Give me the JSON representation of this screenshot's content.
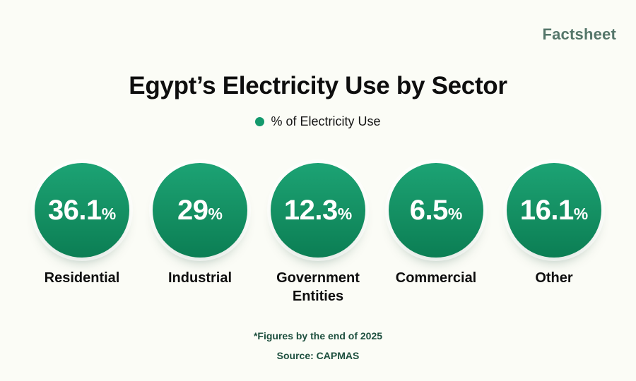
{
  "brand": "Factsheet",
  "title": "Egypt’s Electricity Use by Sector",
  "legend": {
    "label": "% of Electricity Use"
  },
  "colors": {
    "background": "#fbfcf6",
    "bubble_green_top": "#1ca374",
    "bubble_green_bottom": "#0b7e54",
    "legend_dot": "#13996c",
    "brand_text": "#55766a",
    "footer_text": "#1d4f3e",
    "value_text": "#ffffff",
    "label_text": "#0e0e0e"
  },
  "chart_data": {
    "type": "pie",
    "display": "proportional-circles",
    "title": "Egypt’s Electricity Use by Sector",
    "legend_entries": [
      "% of Electricity Use"
    ],
    "categories": [
      "Residential",
      "Industrial",
      "Government Entities",
      "Commercial",
      "Other"
    ],
    "values": [
      36.1,
      29,
      12.3,
      6.5,
      16.1
    ],
    "unit": "%",
    "note": "*Figures by the end of 2025",
    "source": "Source: CAPMAS"
  },
  "sectors": [
    {
      "value_display": "36.1",
      "unit": "%",
      "label": "Residential"
    },
    {
      "value_display": "29",
      "unit": "%",
      "label": "Industrial"
    },
    {
      "value_display": "12.3",
      "unit": "%",
      "label": "Government Entities"
    },
    {
      "value_display": "6.5",
      "unit": "%",
      "label": "Commercial"
    },
    {
      "value_display": "16.1",
      "unit": "%",
      "label": "Other"
    }
  ],
  "footer": {
    "note": "*Figures by the end of 2025",
    "source": "Source: CAPMAS"
  }
}
